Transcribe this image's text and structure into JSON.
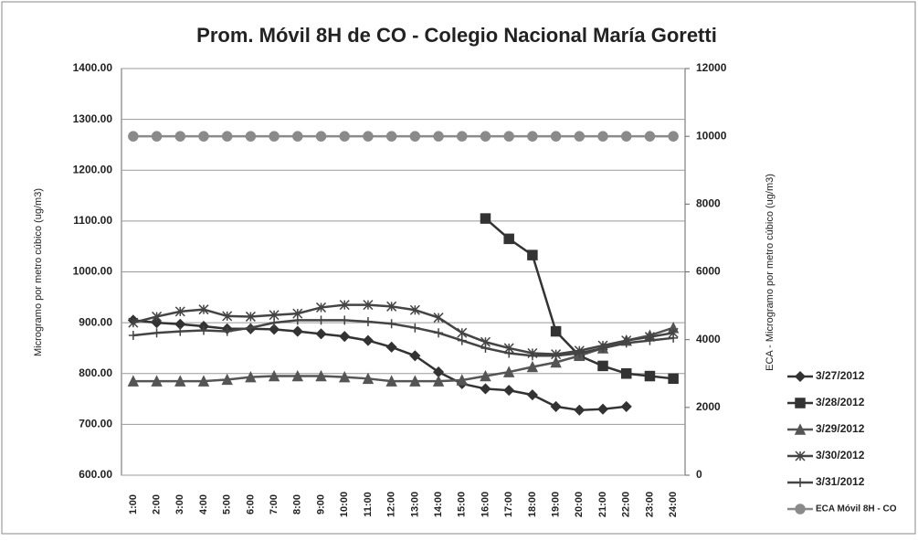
{
  "chart_data": {
    "type": "line",
    "title": "Prom. Móvil 8H de CO - Colegio Nacional María Goretti",
    "ylabel": "Microgramo por metro cúbico (ug/m3)",
    "y2label": "ECA - Microgramo por metro cúbico (ug/m3)",
    "categories": [
      "1:00",
      "2:00",
      "3:00",
      "4:00",
      "5:00",
      "6:00",
      "7:00",
      "8:00",
      "9:00",
      "10:00",
      "11:00",
      "12:00",
      "13:00",
      "14:00",
      "15:00",
      "16:00",
      "17:00",
      "18:00",
      "19:00",
      "20:00",
      "21:00",
      "22:00",
      "23:00",
      "24:00"
    ],
    "ylim": [
      600,
      1400
    ],
    "yticks": [
      {
        "value": 600,
        "label": "600.00"
      },
      {
        "value": 700,
        "label": "700.00"
      },
      {
        "value": 800,
        "label": "800.00"
      },
      {
        "value": 900,
        "label": "900.00"
      },
      {
        "value": 1000,
        "label": "1000.00"
      },
      {
        "value": 1100,
        "label": "1100.00"
      },
      {
        "value": 1200,
        "label": "1200.00"
      },
      {
        "value": 1300,
        "label": "1300.00"
      },
      {
        "value": 1400,
        "label": "1400.00"
      }
    ],
    "y2lim": [
      0,
      12000
    ],
    "y2ticks": [
      0,
      2000,
      4000,
      6000,
      8000,
      10000,
      12000
    ],
    "grid": true,
    "legend": "right",
    "series": [
      {
        "name": "3/27/2012",
        "color": "#333333",
        "marker": "diamond",
        "values": [
          905,
          900,
          897,
          893,
          888,
          888,
          887,
          883,
          878,
          873,
          865,
          852,
          835,
          803,
          780,
          770,
          767,
          758,
          735,
          728,
          730,
          735,
          null,
          null
        ]
      },
      {
        "name": "3/28/2012",
        "color": "#333333",
        "marker": "square",
        "values": [
          null,
          null,
          null,
          null,
          null,
          null,
          null,
          null,
          null,
          null,
          null,
          null,
          null,
          null,
          null,
          1105,
          1065,
          1033,
          883,
          835,
          815,
          800,
          795,
          790
        ]
      },
      {
        "name": "3/29/2012",
        "color": "#555555",
        "marker": "triangle",
        "values": [
          785,
          785,
          785,
          785,
          788,
          793,
          795,
          795,
          795,
          793,
          790,
          785,
          785,
          785,
          787,
          795,
          803,
          813,
          822,
          835,
          850,
          865,
          875,
          890
        ]
      },
      {
        "name": "3/30/2012",
        "color": "#444444",
        "marker": "x",
        "values": [
          900,
          912,
          922,
          926,
          913,
          912,
          915,
          918,
          930,
          935,
          935,
          932,
          925,
          910,
          880,
          862,
          850,
          840,
          838,
          845,
          855,
          865,
          872,
          880
        ]
      },
      {
        "name": "3/31/2012",
        "color": "#444444",
        "marker": "plus",
        "values": [
          875,
          880,
          883,
          885,
          883,
          890,
          900,
          905,
          905,
          905,
          902,
          898,
          890,
          880,
          865,
          850,
          840,
          835,
          835,
          840,
          850,
          860,
          865,
          870
        ]
      },
      {
        "name": "ECA Móvil 8H - CO",
        "color": "#8a8a8a",
        "marker": "circle",
        "axis": "y2",
        "values": [
          10000,
          10000,
          10000,
          10000,
          10000,
          10000,
          10000,
          10000,
          10000,
          10000,
          10000,
          10000,
          10000,
          10000,
          10000,
          10000,
          10000,
          10000,
          10000,
          10000,
          10000,
          10000,
          10000,
          10000
        ]
      }
    ]
  }
}
